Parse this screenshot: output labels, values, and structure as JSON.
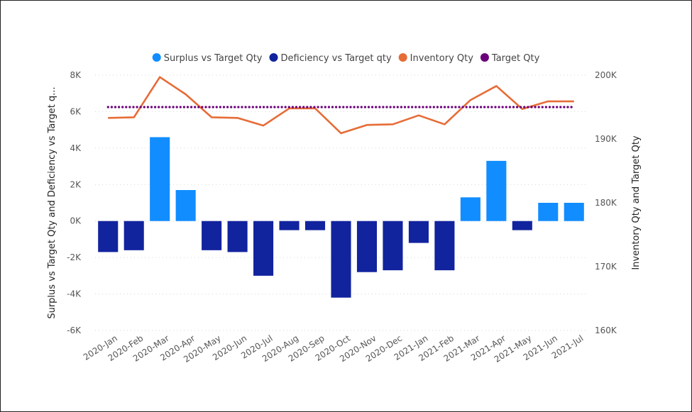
{
  "chart_data": {
    "type": "bar",
    "categories": [
      "2020-Jan",
      "2020-Feb",
      "2020-Mar",
      "2020-Apr",
      "2020-May",
      "2020-Jun",
      "2020-Jul",
      "2020-Aug",
      "2020-Sep",
      "2020-Oct",
      "2020-Nov",
      "2020-Dec",
      "2021-Jan",
      "2021-Feb",
      "2021-Mar",
      "2021-Apr",
      "2021-May",
      "2021-Jun",
      "2021-Jul"
    ],
    "bar_series": [
      {
        "name": "Surplus vs Target Qty",
        "color": "#118DFF",
        "values": [
          null,
          null,
          4600,
          1700,
          null,
          null,
          null,
          null,
          null,
          null,
          null,
          null,
          null,
          null,
          1300,
          3300,
          null,
          1000,
          1000
        ]
      },
      {
        "name": "Deficiency vs Target qty",
        "color": "#12239E",
        "values": [
          -1700,
          -1600,
          null,
          null,
          -1600,
          -1700,
          -3000,
          -500,
          -500,
          -4200,
          -2800,
          -2700,
          -1200,
          -2700,
          null,
          null,
          -500,
          null,
          null
        ]
      }
    ],
    "line_series": [
      {
        "name": "Inventory Qty",
        "color": "#E66C37",
        "style": "solid",
        "values": [
          193300,
          193400,
          199700,
          197000,
          193400,
          193300,
          192100,
          194800,
          194800,
          190900,
          192200,
          192300,
          193700,
          192300,
          196100,
          198300,
          194700,
          195900,
          195900
        ]
      },
      {
        "name": "Target Qty",
        "color": "#6B007B",
        "style": "dotted",
        "values": [
          195000,
          195000,
          195000,
          195000,
          195000,
          195000,
          195000,
          195000,
          195000,
          195000,
          195000,
          195000,
          195000,
          195000,
          195000,
          195000,
          195000,
          195000,
          195000
        ]
      }
    ],
    "ylabel": "Surplus vs Target Qty and Deficiency vs Target q...",
    "y2label": "Inventory Qty and Target Qty",
    "ylim": [
      -6000,
      8000
    ],
    "y_ticks": [
      -6000,
      -4000,
      -2000,
      0,
      2000,
      4000,
      6000,
      8000
    ],
    "y_tick_labels": [
      "-6K",
      "-4K",
      "-2K",
      "0K",
      "2K",
      "4K",
      "6K",
      "8K"
    ],
    "y2lim": [
      160000,
      200000
    ],
    "y2_ticks": [
      160000,
      170000,
      180000,
      190000,
      200000
    ],
    "y2_tick_labels": [
      "160K",
      "170K",
      "180K",
      "190K",
      "200K"
    ],
    "grid": true,
    "legend_position": "top-center"
  }
}
